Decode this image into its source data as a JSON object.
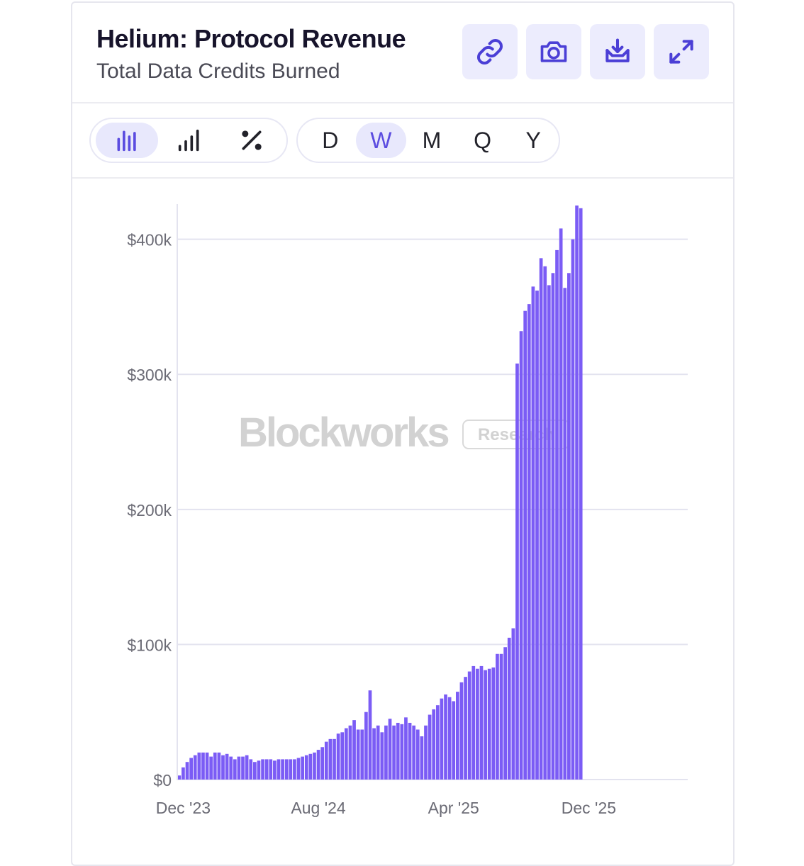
{
  "header": {
    "title": "Helium: Protocol Revenue",
    "subtitle": "Total Data Credits Burned"
  },
  "actions": [
    {
      "name": "link-icon"
    },
    {
      "name": "camera-icon"
    },
    {
      "name": "download-icon"
    },
    {
      "name": "expand-icon"
    }
  ],
  "chart_types": [
    {
      "name": "bar-chart-icon",
      "active": true
    },
    {
      "name": "cumulative-chart-icon",
      "active": false
    },
    {
      "name": "percent-icon",
      "active": false
    }
  ],
  "periods": [
    {
      "label": "D",
      "active": false
    },
    {
      "label": "W",
      "active": true
    },
    {
      "label": "M",
      "active": false
    },
    {
      "label": "Q",
      "active": false
    },
    {
      "label": "Y",
      "active": false
    }
  ],
  "watermark": {
    "brand": "Blockworks",
    "tag": "Research"
  },
  "colors": {
    "bar": "#7b5cf5",
    "grid": "#e3e3ef",
    "active": "#5b4ce0"
  },
  "chart_data": {
    "type": "bar",
    "title": "Helium: Protocol Revenue",
    "subtitle": "Total Data Credits Burned",
    "period": "weekly",
    "xlabel": "",
    "ylabel": "",
    "ylim": [
      0,
      425000
    ],
    "y_ticks": [
      {
        "value": 0,
        "label": "$0"
      },
      {
        "value": 100000,
        "label": "$100k"
      },
      {
        "value": 200000,
        "label": "$200k"
      },
      {
        "value": 300000,
        "label": "$300k"
      },
      {
        "value": 400000,
        "label": "$400k"
      }
    ],
    "x_ticks": [
      {
        "index": 1,
        "label": "Dec '23"
      },
      {
        "index": 35,
        "label": "Aug '24"
      },
      {
        "index": 69,
        "label": "Apr '25"
      },
      {
        "index": 103,
        "label": "Dec '25"
      }
    ],
    "grid": true,
    "series": [
      {
        "name": "Data Credits Burned",
        "values": [
          3000,
          9000,
          13000,
          16000,
          18000,
          20000,
          20000,
          20000,
          17000,
          20000,
          20000,
          18000,
          19000,
          17000,
          15000,
          17000,
          17000,
          18000,
          15000,
          13000,
          14000,
          15000,
          15000,
          15000,
          14000,
          15000,
          15000,
          15000,
          15000,
          15000,
          16000,
          17000,
          18000,
          19000,
          20000,
          22000,
          24000,
          28000,
          30000,
          30000,
          34000,
          35000,
          38000,
          40000,
          44000,
          37000,
          37000,
          50000,
          66000,
          38000,
          40000,
          35000,
          40000,
          45000,
          40000,
          42000,
          41000,
          46000,
          42000,
          40000,
          37000,
          32000,
          40000,
          48000,
          52000,
          55000,
          60000,
          63000,
          61000,
          58000,
          65000,
          72000,
          76000,
          80000,
          84000,
          82000,
          84000,
          81000,
          82000,
          83000,
          93000,
          93000,
          98000,
          105000,
          112000,
          308000,
          332000,
          347000,
          352000,
          365000,
          362000,
          386000,
          380000,
          366000,
          375000,
          392000,
          408000,
          364000,
          375000,
          400000,
          425000,
          423000
        ]
      }
    ]
  }
}
